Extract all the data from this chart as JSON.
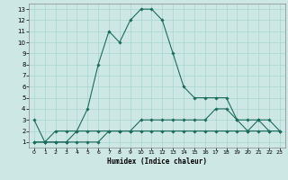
{
  "xlabel": "Humidex (Indice chaleur)",
  "background_color": "#cde8e4",
  "grid_color": "#a8d5cc",
  "line_color": "#1e6b5e",
  "xlim": [
    -0.5,
    23.5
  ],
  "ylim": [
    0.5,
    13.5
  ],
  "xticks": [
    0,
    1,
    2,
    3,
    4,
    5,
    6,
    7,
    8,
    9,
    10,
    11,
    12,
    13,
    14,
    15,
    16,
    17,
    18,
    19,
    20,
    21,
    22,
    23
  ],
  "yticks": [
    1,
    2,
    3,
    4,
    5,
    6,
    7,
    8,
    9,
    10,
    11,
    12,
    13
  ],
  "line1_x": [
    0,
    1,
    2,
    3,
    4,
    5,
    6,
    7,
    8,
    9,
    10,
    11,
    12,
    13,
    14,
    15,
    16,
    17,
    18,
    19,
    20,
    21,
    22,
    23
  ],
  "line1_y": [
    3,
    1,
    2,
    2,
    2,
    4,
    8,
    11,
    10,
    12,
    13,
    13,
    12,
    9,
    6,
    5,
    5,
    5,
    5,
    3,
    3,
    3,
    2,
    null
  ],
  "line2_x": [
    0,
    1,
    2,
    3,
    4,
    5,
    6,
    7,
    8,
    9,
    10,
    11,
    12,
    13,
    14,
    15,
    16,
    17,
    18,
    19,
    20,
    21,
    22,
    23
  ],
  "line2_y": [
    1,
    1,
    1,
    1,
    2,
    2,
    2,
    2,
    2,
    2,
    3,
    3,
    3,
    3,
    3,
    3,
    3,
    4,
    4,
    3,
    2,
    3,
    3,
    2
  ],
  "line3_x": [
    0,
    1,
    2,
    3,
    4,
    5,
    6,
    7,
    8,
    9,
    10,
    11,
    12,
    13,
    14,
    15,
    16,
    17,
    18,
    19,
    20,
    21,
    22,
    23
  ],
  "line3_y": [
    1,
    1,
    1,
    1,
    1,
    1,
    1,
    2,
    2,
    2,
    2,
    2,
    2,
    2,
    2,
    2,
    2,
    2,
    2,
    2,
    2,
    2,
    2,
    2
  ],
  "figsize": [
    3.2,
    2.0
  ],
  "dpi": 100
}
